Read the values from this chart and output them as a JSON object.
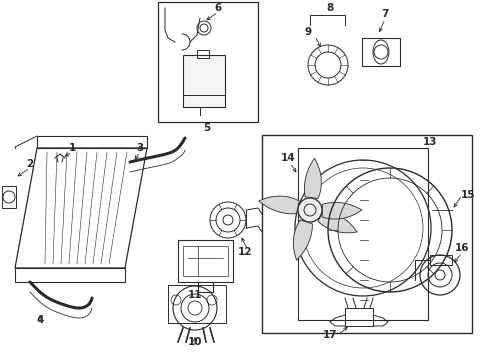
{
  "bg_color": "#ffffff",
  "line_color": "#2a2a2a",
  "fig_width": 4.9,
  "fig_height": 3.6,
  "dpi": 100,
  "label_fs": 7.5,
  "lw": 0.7
}
